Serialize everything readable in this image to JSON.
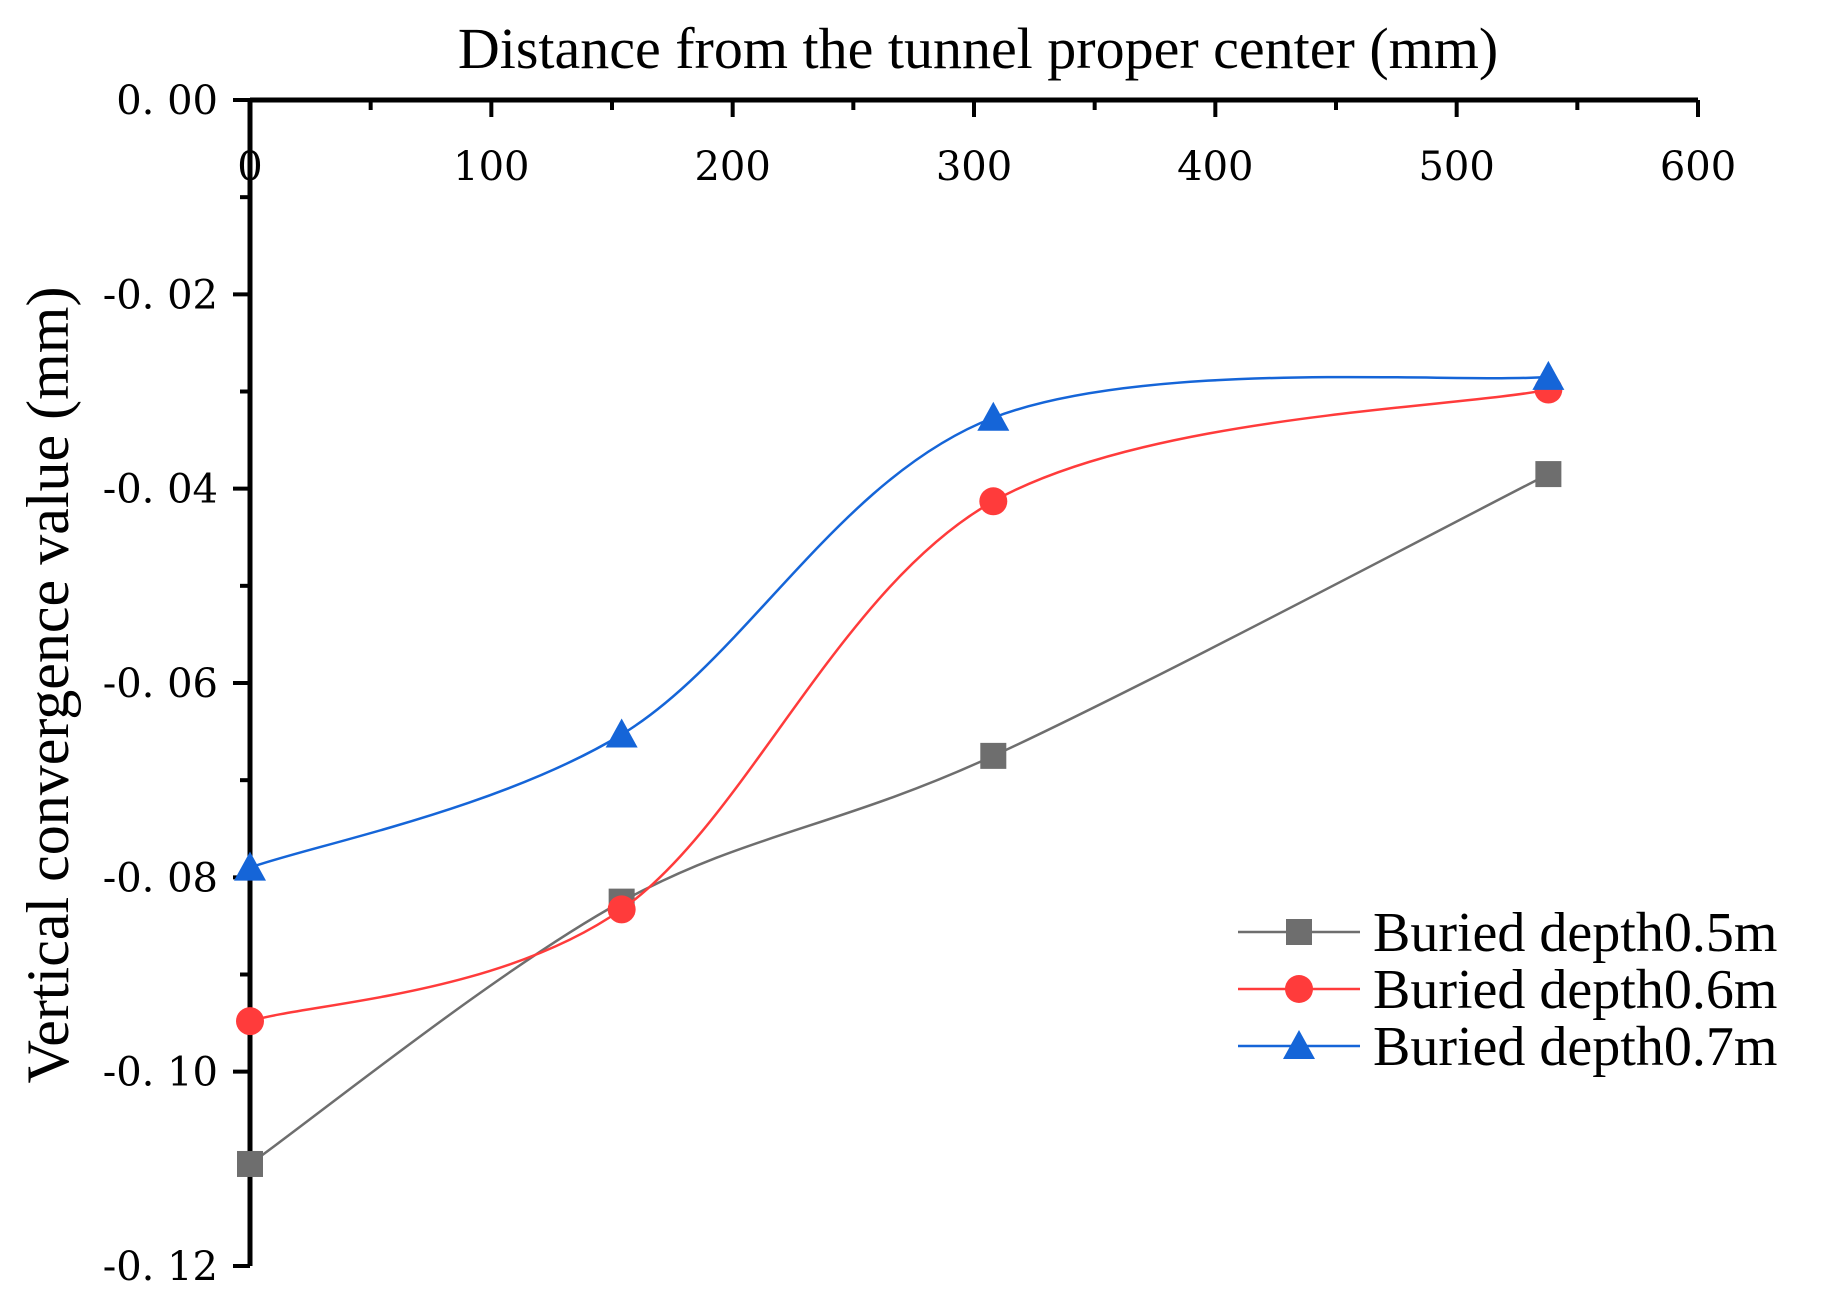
{
  "chart_data": {
    "type": "line",
    "title": "",
    "xlabel": "Distance from the tunnel proper center (mm)",
    "ylabel": "Vertical convergence value (mm)",
    "x_axis_position": "top",
    "xlim": [
      0,
      600
    ],
    "ylim": [
      -0.12,
      0.0
    ],
    "x_ticks": [
      0,
      100,
      200,
      300,
      400,
      500,
      600
    ],
    "x_tick_labels": [
      "0",
      "100",
      "200",
      "300",
      "400",
      "500",
      "600"
    ],
    "y_ticks": [
      0.0,
      -0.02,
      -0.04,
      -0.06,
      -0.08,
      -0.1,
      -0.12
    ],
    "y_tick_labels": [
      "0. 00",
      "-0. 02",
      "-0. 04",
      "-0. 06",
      "-0. 08",
      "-0. 10",
      "-0. 12"
    ],
    "grid": false,
    "legend_position": "bottom-right",
    "series": [
      {
        "name": "Buried depth0.5m",
        "color": "#6e6e6e",
        "marker": "square",
        "x": [
          0,
          154,
          308,
          538
        ],
        "values": [
          -0.1095,
          -0.0825,
          -0.0675,
          -0.0385
        ]
      },
      {
        "name": "Buried depth0.6m",
        "color": "#ff3b3b",
        "marker": "circle",
        "x": [
          0,
          154,
          308,
          538
        ],
        "values": [
          -0.0948,
          -0.0833,
          -0.0413,
          -0.0298
        ]
      },
      {
        "name": "Buried depth0.7m",
        "color": "#1565d8",
        "marker": "triangle",
        "x": [
          0,
          154,
          308,
          538
        ],
        "values": [
          -0.079,
          -0.0653,
          -0.0327,
          -0.0285
        ]
      }
    ]
  }
}
